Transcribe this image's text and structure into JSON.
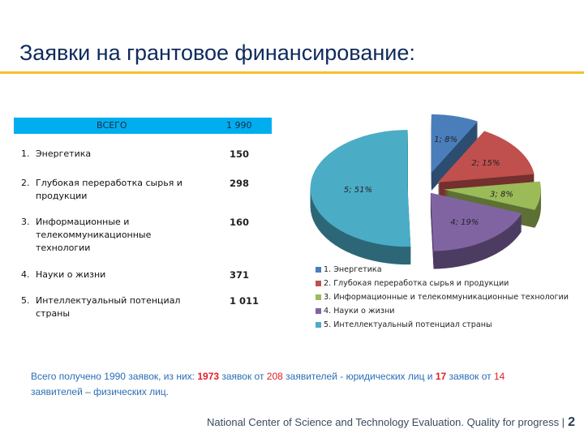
{
  "title": "Заявки на грантовое финансирование:",
  "table": {
    "header_label": "ВСЕГО",
    "header_value": "1 990",
    "rows": [
      {
        "num": "1.",
        "label": "Энергетика",
        "value": "150"
      },
      {
        "num": "2.",
        "label": "Глубокая переработка сырья и продукции",
        "value": "298"
      },
      {
        "num": "3.",
        "label": "Информационные и телекоммуникационные технологии",
        "value": "160"
      },
      {
        "num": "4.",
        "label": "Науки о жизни",
        "value": "371"
      },
      {
        "num": "5.",
        "label": "Интеллектуальный потенциал страны",
        "value": "1 011"
      }
    ]
  },
  "chart_data": {
    "type": "pie",
    "title": "",
    "categories": [
      "1",
      "2",
      "3",
      "4",
      "5"
    ],
    "values": [
      8,
      15,
      8,
      19,
      51
    ],
    "data_labels": [
      "1;  8%",
      "2;  15%",
      "3;  8%",
      "4;  19%",
      "5;  51%"
    ],
    "colors": [
      "#4a7ebb",
      "#c0504d",
      "#9bbb59",
      "#8064a2",
      "#4bacc6"
    ],
    "legend": [
      "1.  Энергетика",
      "2.  Глубокая переработка сырья и продукции",
      "3.  Информационные и телекоммуникационные технологии",
      "4.  Науки о жизни",
      "5.  Интеллектуальный потенциал страны"
    ],
    "legend_position": "bottom"
  },
  "summary": {
    "p1": "Всего получено 1990 заявок, из них: ",
    "n1": "1973",
    "p2": " заявок от ",
    "n2": "208",
    "p3": " заявителей - юридических лиц и ",
    "n3": "17",
    "p4": " заявок от ",
    "n4": "14",
    "p5": " заявителей – физических лиц."
  },
  "footer": {
    "text": "National Center of Science and Technology Evaluation. Quality for progress |",
    "page": "2"
  }
}
